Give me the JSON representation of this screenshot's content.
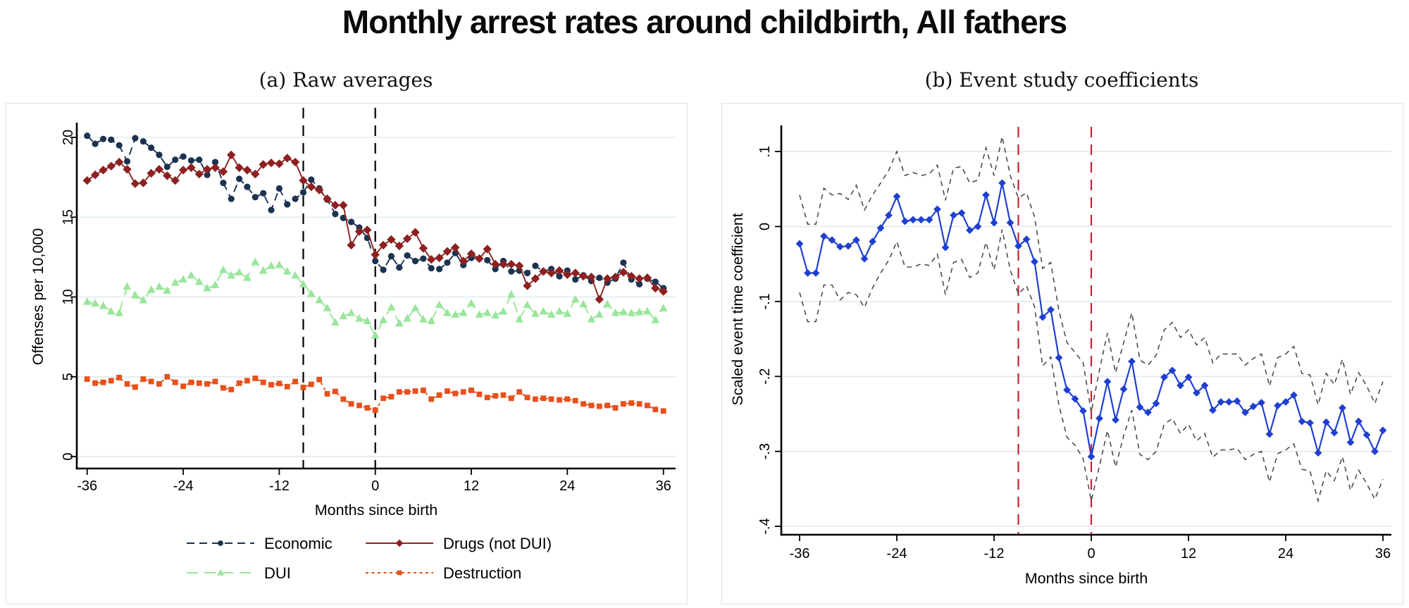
{
  "title": "Monthly arrest rates around childbirth, All fathers",
  "accent_colors": {
    "economic_navy": "#1b3351",
    "drugs_maroon": "#8f2020",
    "dui_green": "#99e69b",
    "destruction_orange": "#e4511c",
    "coefficient_blue": "#1f3fd0",
    "ci_gray": "#4d4d4d",
    "birth_line_red": "#c52233",
    "birth_line_black": "#000000",
    "gridline": "#dfebee"
  },
  "chart_data": [
    {
      "id": "raw-averages",
      "type": "line",
      "title": "(a) Raw averages",
      "xlabel": "Months since birth",
      "ylabel": "Offenses per 10,000",
      "x_start": -36,
      "x_end": 36,
      "xlim": [
        -38,
        38
      ],
      "ylim": [
        0,
        20.6
      ],
      "grid": true,
      "legend_position": "bottom",
      "xticks": [
        -36,
        -24,
        -12,
        0,
        12,
        24,
        36
      ],
      "xtick_labels": [
        "-36",
        "-24",
        "-12",
        "0",
        "12",
        "24",
        "36"
      ],
      "yticks": [
        0,
        5,
        10,
        15,
        20
      ],
      "ytick_labels": [
        "0",
        "5",
        "10",
        "15",
        "20"
      ],
      "vlines": [
        {
          "x": -9,
          "color": "#000000",
          "style": "dashed"
        },
        {
          "x": 0,
          "color": "#000000",
          "style": "dashed"
        }
      ],
      "series": [
        {
          "name": "Economic",
          "color": "#1b3351",
          "marker": "circle",
          "line": "dashed",
          "values": [
            20.1,
            19.6,
            19.9,
            19.85,
            19.5,
            18.5,
            19.95,
            19.75,
            19.35,
            18.9,
            18.15,
            18.6,
            18.8,
            18.55,
            18.6,
            17.65,
            18.45,
            17.15,
            16.15,
            17.4,
            16.9,
            16.25,
            16.5,
            15.45,
            16.8,
            15.8,
            16.15,
            16.55,
            17.35,
            16.8,
            16.1,
            15.2,
            14.95,
            14.7,
            14.35,
            13.7,
            12.25,
            11.7,
            12.55,
            11.85,
            12.6,
            12.25,
            12.4,
            11.8,
            11.75,
            12.15,
            12.75,
            12.0,
            12.45,
            12.4,
            12.3,
            11.75,
            12.25,
            11.6,
            11.65,
            11.5,
            11.95,
            11.6,
            11.75,
            11.3,
            11.65,
            11.1,
            11.35,
            11.0,
            11.2,
            10.9,
            11.15,
            12.15,
            11.1,
            10.8,
            11.15,
            10.95,
            10.55
          ]
        },
        {
          "name": "Drugs (not DUI)",
          "color": "#8f2020",
          "marker": "diamond",
          "line": "solid",
          "values": [
            17.3,
            17.65,
            17.95,
            18.2,
            18.45,
            18.0,
            17.1,
            17.15,
            17.75,
            18.0,
            17.6,
            17.3,
            17.95,
            18.1,
            17.7,
            18.0,
            18.1,
            17.85,
            18.9,
            18.1,
            17.95,
            17.7,
            18.3,
            18.4,
            18.35,
            18.7,
            18.45,
            17.3,
            16.9,
            16.7,
            16.15,
            15.75,
            15.75,
            13.25,
            14.1,
            14.2,
            12.65,
            13.25,
            13.6,
            13.2,
            13.65,
            14.05,
            13.05,
            12.35,
            12.45,
            12.85,
            13.1,
            12.25,
            12.7,
            12.4,
            13.0,
            12.05,
            12.05,
            12.05,
            11.95,
            10.7,
            11.15,
            11.6,
            11.5,
            11.65,
            11.4,
            11.5,
            11.3,
            11.25,
            9.85,
            11.15,
            11.25,
            11.55,
            11.3,
            11.15,
            11.2,
            10.55,
            10.35
          ]
        },
        {
          "name": "DUI",
          "color": "#99e69b",
          "marker": "triangle",
          "line": "longdash",
          "values": [
            9.7,
            9.6,
            9.45,
            9.1,
            9.0,
            10.65,
            10.1,
            9.8,
            10.45,
            10.65,
            10.4,
            10.9,
            11.1,
            11.35,
            10.95,
            10.55,
            10.75,
            11.7,
            11.35,
            11.55,
            11.2,
            12.2,
            11.65,
            11.95,
            12.0,
            11.6,
            11.35,
            10.8,
            10.2,
            9.8,
            9.3,
            8.4,
            8.8,
            9.0,
            8.65,
            8.5,
            7.6,
            8.55,
            9.35,
            8.35,
            8.65,
            9.3,
            8.6,
            8.5,
            9.5,
            9.0,
            8.9,
            9.0,
            9.6,
            8.9,
            9.0,
            8.85,
            9.1,
            10.15,
            8.6,
            9.5,
            8.95,
            9.1,
            8.9,
            9.1,
            8.95,
            9.85,
            9.55,
            8.6,
            8.9,
            9.55,
            9.0,
            9.05,
            9.0,
            9.05,
            9.1,
            8.55,
            9.3
          ]
        },
        {
          "name": "Destruction",
          "color": "#e4511c",
          "marker": "square",
          "line": "shortdash",
          "values": [
            4.85,
            4.6,
            4.65,
            4.75,
            4.95,
            4.55,
            4.35,
            4.85,
            4.7,
            4.55,
            5.0,
            4.65,
            4.4,
            4.65,
            4.6,
            4.55,
            4.7,
            4.3,
            4.2,
            4.6,
            4.75,
            4.9,
            4.65,
            4.5,
            4.58,
            4.38,
            4.7,
            4.33,
            4.52,
            4.82,
            3.93,
            4.08,
            3.6,
            3.3,
            3.2,
            3.05,
            2.9,
            3.65,
            3.75,
            4.05,
            4.05,
            4.1,
            4.15,
            3.6,
            3.85,
            4.1,
            3.95,
            4.05,
            4.15,
            3.9,
            3.7,
            3.8,
            3.85,
            3.65,
            4.05,
            3.7,
            3.6,
            3.65,
            3.6,
            3.55,
            3.6,
            3.5,
            3.3,
            3.2,
            3.15,
            3.2,
            3.05,
            3.3,
            3.35,
            3.3,
            3.2,
            2.95,
            2.85
          ]
        }
      ]
    },
    {
      "id": "event-study",
      "type": "line",
      "title": "(b) Event study coefficients",
      "xlabel": "Months since birth",
      "ylabel": "Scaled event time coefficient",
      "x_start": -36,
      "x_end": 36,
      "xlim": [
        -38,
        38
      ],
      "ylim": [
        -0.42,
        0.13
      ],
      "grid": true,
      "legend_position": "none",
      "xticks": [
        -36,
        -24,
        -12,
        0,
        12,
        24,
        36
      ],
      "xtick_labels": [
        "-36",
        "-24",
        "-12",
        "0",
        "12",
        "24",
        "36"
      ],
      "yticks": [
        0.1,
        0,
        -0.1,
        -0.2,
        -0.3,
        -0.4
      ],
      "ytick_labels": [
        ".1",
        "0",
        "-.1",
        "-.2",
        "-.3",
        "-.4"
      ],
      "vlines": [
        {
          "x": -9,
          "color": "#c52233",
          "style": "dashed"
        },
        {
          "x": 0,
          "color": "#c52233",
          "style": "dashed"
        }
      ],
      "series": [
        {
          "name": "ci upper",
          "color": "#4d4d4d",
          "marker": null,
          "line": "cidash",
          "width": 1.6,
          "values": [
            0.042,
            0.003,
            0.003,
            0.051,
            0.042,
            0.044,
            0.036,
            0.055,
            0.022,
            0.042,
            0.058,
            0.075,
            0.1,
            0.068,
            0.072,
            0.068,
            0.07,
            0.082,
            0.035,
            0.078,
            0.08,
            0.058,
            0.062,
            0.105,
            0.068,
            0.12,
            0.068,
            0.038,
            0.045,
            0.013,
            -0.056,
            -0.048,
            -0.112,
            -0.155,
            -0.168,
            -0.182,
            -0.248,
            -0.192,
            -0.142,
            -0.195,
            -0.155,
            -0.115,
            -0.178,
            -0.185,
            -0.172,
            -0.138,
            -0.128,
            -0.148,
            -0.138,
            -0.158,
            -0.148,
            -0.182,
            -0.17,
            -0.17,
            -0.17,
            -0.185,
            -0.176,
            -0.17,
            -0.213,
            -0.175,
            -0.17,
            -0.16,
            -0.196,
            -0.198,
            -0.238,
            -0.196,
            -0.211,
            -0.177,
            -0.224,
            -0.195,
            -0.213,
            -0.236,
            -0.207
          ]
        },
        {
          "name": "ci lower",
          "color": "#4d4d4d",
          "marker": null,
          "line": "cidash",
          "width": 1.6,
          "values": [
            -0.088,
            -0.127,
            -0.127,
            -0.078,
            -0.078,
            -0.098,
            -0.088,
            -0.091,
            -0.108,
            -0.082,
            -0.062,
            -0.045,
            -0.02,
            -0.054,
            -0.054,
            -0.05,
            -0.052,
            -0.037,
            -0.091,
            -0.048,
            -0.044,
            -0.068,
            -0.062,
            -0.021,
            -0.058,
            -0.004,
            -0.058,
            -0.09,
            -0.079,
            -0.107,
            -0.186,
            -0.174,
            -0.238,
            -0.281,
            -0.292,
            -0.31,
            -0.366,
            -0.32,
            -0.272,
            -0.321,
            -0.279,
            -0.245,
            -0.304,
            -0.311,
            -0.3,
            -0.264,
            -0.256,
            -0.276,
            -0.264,
            -0.286,
            -0.276,
            -0.308,
            -0.298,
            -0.298,
            -0.296,
            -0.311,
            -0.304,
            -0.3,
            -0.341,
            -0.303,
            -0.298,
            -0.29,
            -0.324,
            -0.326,
            -0.366,
            -0.326,
            -0.339,
            -0.307,
            -0.352,
            -0.325,
            -0.343,
            -0.364,
            -0.337
          ]
        },
        {
          "name": "coefficient",
          "color": "#1f3fd0",
          "marker": "diamond",
          "line": "solid",
          "width": 2.2,
          "values": [
            -0.023,
            -0.062,
            -0.062,
            -0.013,
            -0.018,
            -0.027,
            -0.026,
            -0.018,
            -0.043,
            -0.02,
            -0.002,
            0.015,
            0.04,
            0.007,
            0.009,
            0.009,
            0.009,
            0.023,
            -0.028,
            0.015,
            0.018,
            -0.005,
            0.0,
            0.042,
            0.005,
            0.058,
            0.005,
            -0.026,
            -0.017,
            -0.047,
            -0.121,
            -0.111,
            -0.175,
            -0.218,
            -0.23,
            -0.246,
            -0.307,
            -0.256,
            -0.207,
            -0.258,
            -0.217,
            -0.18,
            -0.241,
            -0.248,
            -0.236,
            -0.201,
            -0.192,
            -0.212,
            -0.201,
            -0.222,
            -0.212,
            -0.245,
            -0.234,
            -0.234,
            -0.233,
            -0.248,
            -0.24,
            -0.235,
            -0.277,
            -0.239,
            -0.234,
            -0.225,
            -0.26,
            -0.262,
            -0.302,
            -0.261,
            -0.275,
            -0.242,
            -0.288,
            -0.26,
            -0.278,
            -0.3,
            -0.272
          ]
        }
      ]
    }
  ]
}
